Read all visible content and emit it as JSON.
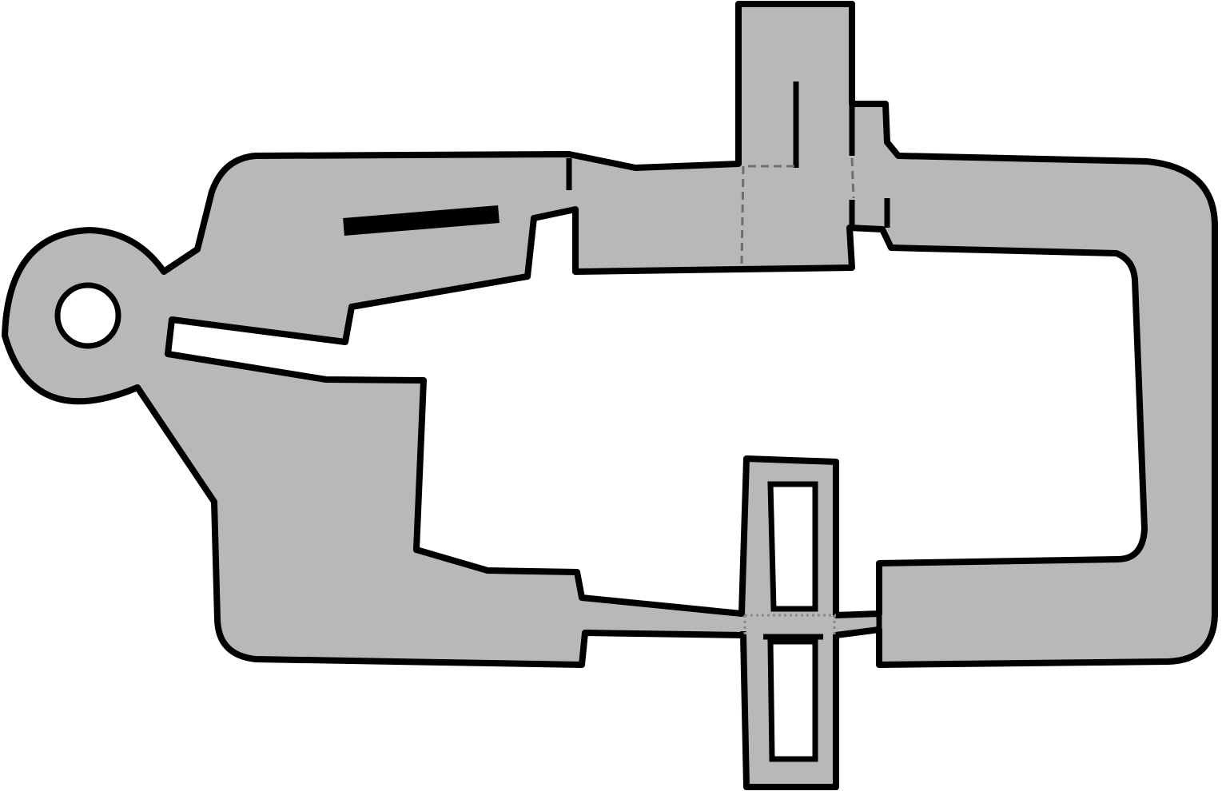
{
  "map": {
    "kind": "floor-plan",
    "labels": [],
    "colors": {
      "floor": "#b8b8b8",
      "wall": "#000000",
      "background": "#ffffff",
      "door_dashed": "#6e6e6e",
      "door_dotted": "#8a8a8a"
    },
    "rooms": [
      "west-round-chamber",
      "northwest-hall",
      "southwest-hall",
      "north-corridor",
      "north-tower",
      "north-annex",
      "east-loop-corridor",
      "south-corridor",
      "south-crossing",
      "southeast-hall"
    ]
  }
}
